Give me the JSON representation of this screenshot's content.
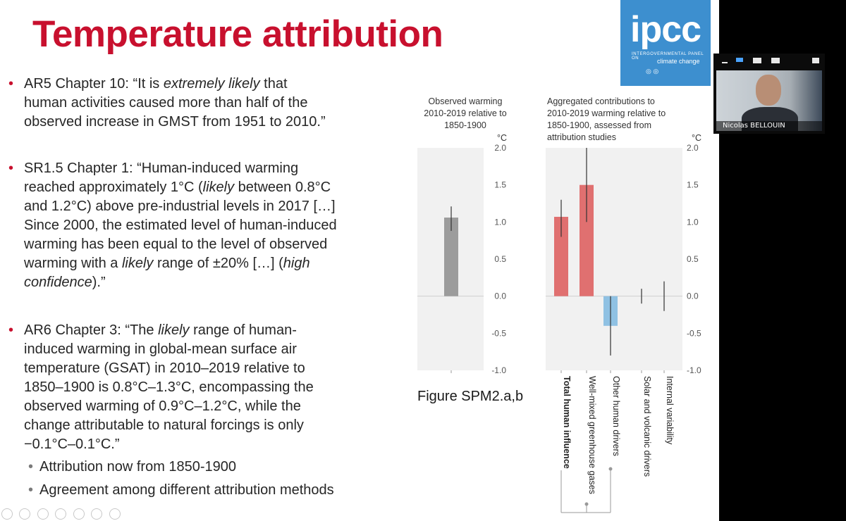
{
  "slide": {
    "title": "Temperature attribution",
    "logo": {
      "text": "ipcc",
      "subtitle_line1": "INTERGOVERNMENTAL PANEL ON",
      "subtitle_line2": "climate change",
      "emblems": "WMO UNEP"
    },
    "bullets": [
      {
        "lines": [
          [
            "AR5 Chapter 10: “It  is  ",
            "extremely  likely",
            "  that"
          ],
          [
            "human activities caused more than half of the"
          ],
          [
            "observed increase in GMST from 1951 to 2010.”"
          ]
        ]
      },
      {
        "lines": [
          [
            "SR1.5 Chapter 1: “Human-induced warming"
          ],
          [
            "reached approximately 1°C (",
            "likely",
            " between 0.8°C"
          ],
          [
            "and 1.2°C) above pre-industrial levels in 2017 […]"
          ],
          [
            "Since 2000, the estimated level of human-induced"
          ],
          [
            "warming has been equal to the level of observed"
          ],
          [
            "warming with a ",
            "likely",
            " range of ±20% […] (",
            "high",
            ""
          ],
          [
            "",
            "confidence",
            ").”"
          ]
        ]
      },
      {
        "lines": [
          [
            "AR6 Chapter 3: “The ",
            "likely",
            " range of human-"
          ],
          [
            "induced warming in global-mean surface air"
          ],
          [
            "temperature (GSAT) in 2010–2019 relative to"
          ],
          [
            "1850–1900 is 0.8°C–1.3°C, encompassing the"
          ],
          [
            "observed warming of 0.9°C–1.2°C, while the"
          ],
          [
            "change attributable to natural forcings is only"
          ],
          [
            "−0.1°C–0.1°C.”"
          ]
        ]
      }
    ],
    "sub_bullets": [
      "Attribution now from 1850-1900",
      "Agreement among different attribution methods"
    ],
    "figure_caption": "Figure SPM2.a,b"
  },
  "chart_data": [
    {
      "type": "bar",
      "title": "Observed warming 2010-2019 relative to 1850-1900",
      "title_lines": [
        "Observed warming",
        "2010-2019 relative to",
        "1850-1900"
      ],
      "unit": "°C",
      "ylim": [
        -1.0,
        2.0
      ],
      "yticks": [
        "2.0",
        "1.5",
        "1.0",
        "0.5",
        "0.0",
        "-0.5",
        "-1.0"
      ],
      "categories": [
        ""
      ],
      "values": [
        1.06
      ],
      "error_low": [
        0.88
      ],
      "error_high": [
        1.21
      ],
      "colors": [
        "#9c9c9c"
      ]
    },
    {
      "type": "bar",
      "title": "Aggregated contributions to 2010-2019 warming relative to 1850-1900, assessed from attribution studies",
      "title_lines": [
        "Aggregated contributions to",
        "2010-2019 warming relative to",
        "1850-1900, assessed from",
        "attribution studies"
      ],
      "unit": "°C",
      "ylim": [
        -1.0,
        2.0
      ],
      "yticks": [
        "2.0",
        "1.5",
        "1.0",
        "0.5",
        "0.0",
        "-0.5",
        "-1.0"
      ],
      "categories": [
        "Total human influence",
        "Well-mixed greenhouse gases",
        "Other human drivers",
        "Solar and volcanic drivers",
        "Internal variability"
      ],
      "values": [
        1.07,
        1.5,
        -0.4,
        0.0,
        0.0
      ],
      "error_low": [
        0.8,
        1.0,
        -0.8,
        -0.1,
        -0.2
      ],
      "error_high": [
        1.3,
        2.0,
        0.0,
        0.1,
        0.2
      ],
      "colors": [
        "#e07070",
        "#e07070",
        "#8fc1e3",
        "#333333",
        "#333333"
      ]
    }
  ],
  "webcam": {
    "participant_name": "Nicolas BELLOUIN"
  }
}
